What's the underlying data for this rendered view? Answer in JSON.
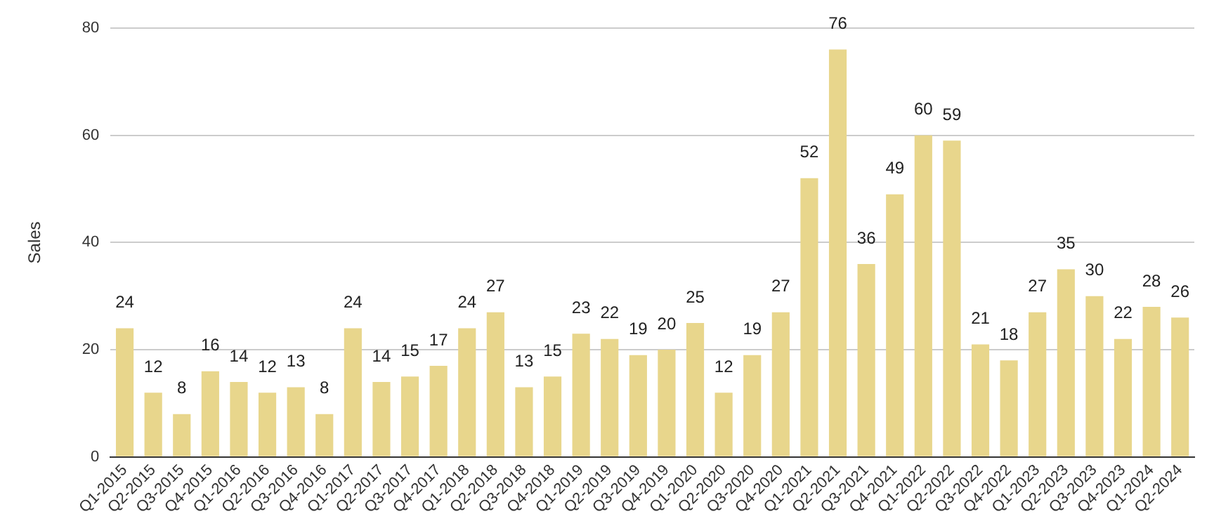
{
  "chart_data": {
    "type": "bar",
    "ylabel": "Sales",
    "categories": [
      "Q1-2015",
      "Q2-2015",
      "Q3-2015",
      "Q4-2015",
      "Q1-2016",
      "Q2-2016",
      "Q3-2016",
      "Q4-2016",
      "Q1-2017",
      "Q2-2017",
      "Q3-2017",
      "Q4-2017",
      "Q1-2018",
      "Q2-2018",
      "Q3-2018",
      "Q4-2018",
      "Q1-2019",
      "Q2-2019",
      "Q3-2019",
      "Q4-2019",
      "Q1-2020",
      "Q2-2020",
      "Q3-2020",
      "Q4-2020",
      "Q1-2021",
      "Q2-2021",
      "Q3-2021",
      "Q4-2021",
      "Q1-2022",
      "Q2-2022",
      "Q3-2022",
      "Q4-2022",
      "Q1-2023",
      "Q2-2023",
      "Q3-2023",
      "Q4-2023",
      "Q1-2024",
      "Q2-2024"
    ],
    "values": [
      24,
      12,
      8,
      16,
      14,
      12,
      13,
      8,
      24,
      14,
      15,
      17,
      24,
      27,
      13,
      15,
      23,
      22,
      19,
      20,
      25,
      12,
      19,
      27,
      52,
      76,
      36,
      49,
      60,
      59,
      21,
      18,
      27,
      35,
      30,
      22,
      28,
      26
    ],
    "color": "#e8d68c",
    "ylim": [
      0,
      80
    ],
    "yticks": [
      0,
      20,
      40,
      60,
      80
    ],
    "grid": "y",
    "data_labels": true
  }
}
